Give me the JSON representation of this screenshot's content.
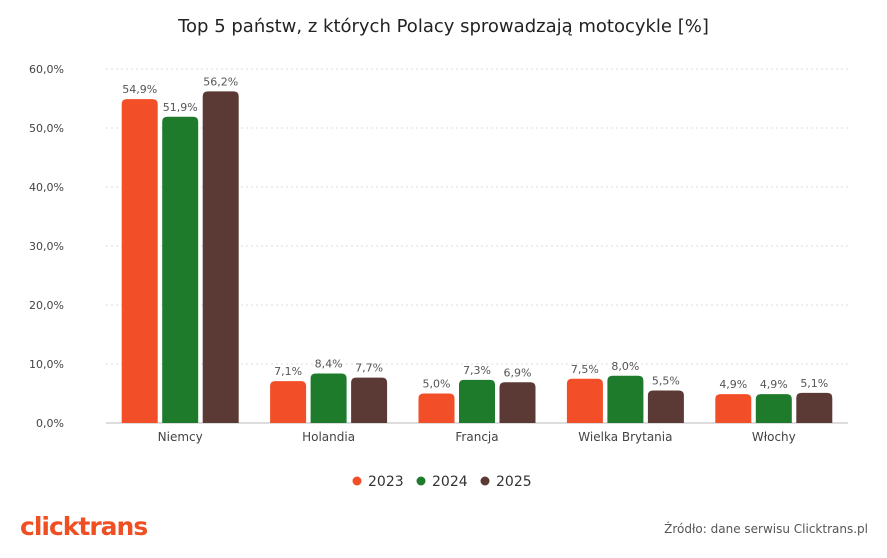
{
  "chart_data": {
    "type": "bar",
    "title": "Top 5 państw, z których Polacy sprowadzają motocykle [%]",
    "categories": [
      "Niemcy",
      "Holandia",
      "Francja",
      "Wielka Brytania",
      "Włochy"
    ],
    "series": [
      {
        "name": "2023",
        "color": "#f24e27",
        "values": [
          54.9,
          7.1,
          5.0,
          7.5,
          4.9
        ],
        "labels": [
          "54,9%",
          "7,1%",
          "5,0%",
          "7,5%",
          "4,9%"
        ]
      },
      {
        "name": "2024",
        "color": "#1e7b2c",
        "values": [
          51.9,
          8.4,
          7.3,
          8.0,
          4.9
        ],
        "labels": [
          "51,9%",
          "8,4%",
          "7,3%",
          "8,0%",
          "4,9%"
        ]
      },
      {
        "name": "2025",
        "color": "#5b3a35",
        "values": [
          56.2,
          7.7,
          6.9,
          5.5,
          5.1
        ],
        "labels": [
          "56,2%",
          "7,7%",
          "6,9%",
          "5,5%",
          "5,1%"
        ]
      }
    ],
    "ylim": [
      0,
      60
    ],
    "yticks": [
      0,
      10,
      20,
      30,
      40,
      50,
      60
    ],
    "ytick_labels": [
      "0,0%",
      "10,0%",
      "20,0%",
      "30,0%",
      "40,0%",
      "50,0%",
      "60,0%"
    ],
    "grid": true,
    "legend_position": "bottom-center"
  },
  "footer": {
    "logo_text": "clicktrans",
    "source": "Źródło: dane serwisu Clicktrans.pl"
  }
}
